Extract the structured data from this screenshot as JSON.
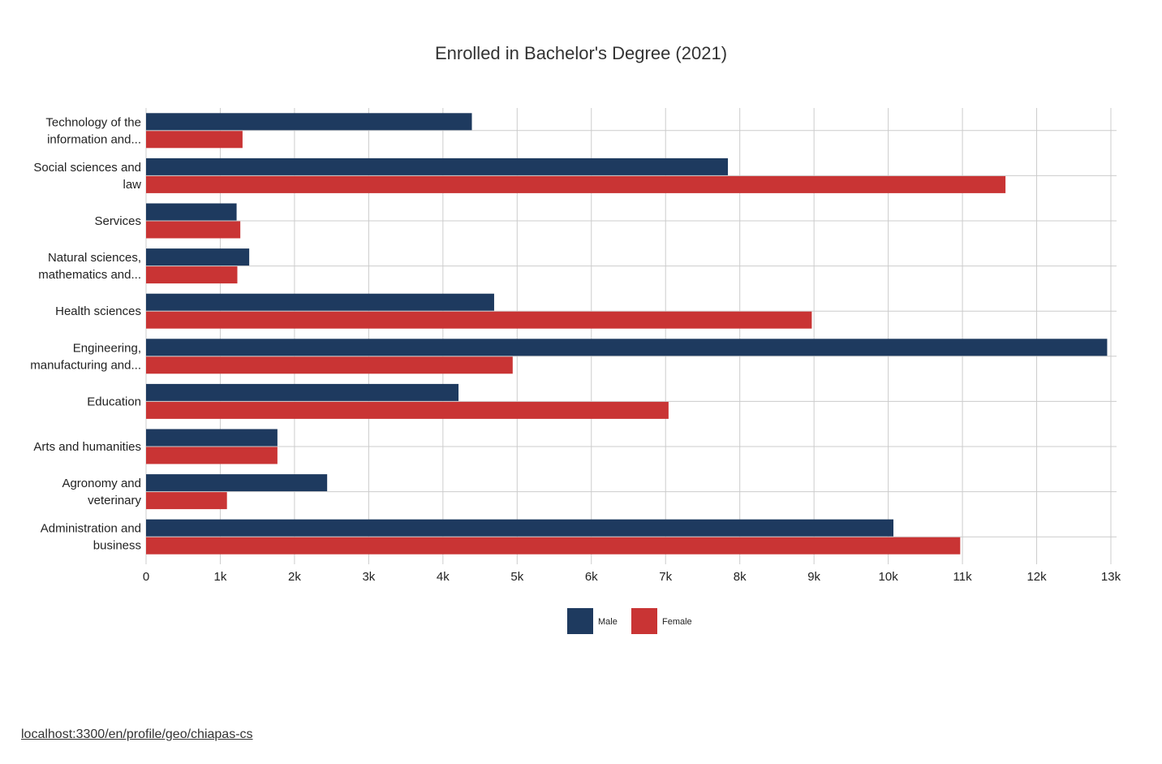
{
  "footer": {
    "url_text": "localhost:3300/en/profile/geo/chiapas-cs"
  },
  "colors": {
    "male": "#1e3a5f",
    "female": "#c93434",
    "grid": "#cccccc"
  },
  "chart_data": {
    "type": "bar",
    "orientation": "horizontal",
    "title": "Enrolled in Bachelor's Degree (2021)",
    "xlabel": "",
    "ylabel": "",
    "xlim": [
      0,
      13000
    ],
    "grid": true,
    "legend_position": "bottom-center",
    "x_ticks": [
      "0",
      "1k",
      "2k",
      "3k",
      "4k",
      "5k",
      "6k",
      "7k",
      "8k",
      "9k",
      "10k",
      "11k",
      "12k",
      "13k"
    ],
    "categories": [
      [
        "Technology of the",
        "information and..."
      ],
      [
        "Social sciences and",
        "law"
      ],
      [
        "Services"
      ],
      [
        "Natural sciences,",
        "mathematics and..."
      ],
      [
        "Health sciences"
      ],
      [
        "Engineering,",
        "manufacturing and..."
      ],
      [
        "Education"
      ],
      [
        "Arts and humanities"
      ],
      [
        "Agronomy and",
        "veterinary"
      ],
      [
        "Administration and",
        "business"
      ]
    ],
    "series": [
      {
        "name": "Male",
        "color": "#1e3a5f",
        "values": [
          4390,
          7840,
          1220,
          1390,
          4690,
          12950,
          4210,
          1770,
          2440,
          10070
        ]
      },
      {
        "name": "Female",
        "color": "#c93434",
        "values": [
          1300,
          11580,
          1270,
          1230,
          8970,
          4940,
          7040,
          1770,
          1090,
          10970
        ]
      }
    ]
  }
}
